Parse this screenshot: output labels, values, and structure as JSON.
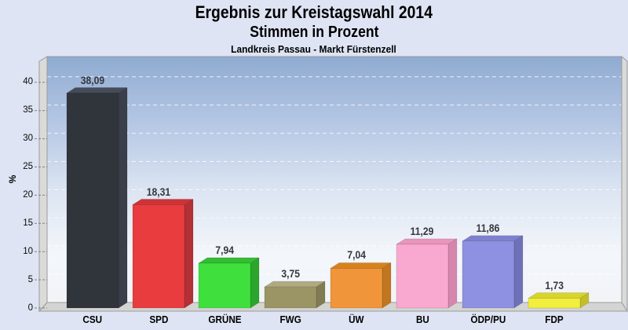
{
  "header": {
    "title": "Ergebnis zur Kreistagswahl 2014",
    "subtitle": "Stimmen in Prozent",
    "region": "Landkreis Passau - Markt Fürstenzell"
  },
  "colors": {
    "page_bg": "#dee4f3",
    "wall": "#dadad8",
    "floor": "#d4d4d2",
    "box_edge": "#9b9b9b",
    "gridline": "rgba(255,255,255,0.8)",
    "tick_mark": "#808080",
    "tick_label": "#0a0a0a",
    "value_label": "#34373c",
    "interior_gradient": [
      "#8fabd1",
      "#b2c5e3",
      "#dce5f2",
      "#f3f6fa",
      "#f2f4f8"
    ]
  },
  "chart_data": {
    "type": "bar",
    "title": "Ergebnis zur Kreistagswahl 2014",
    "subtitle": "Stimmen in Prozent",
    "region_label": "Landkreis Passau - Markt Fürstenzell",
    "xlabel": "",
    "ylabel": "%",
    "ylim": [
      0,
      40
    ],
    "yticks": [
      0,
      5,
      10,
      15,
      20,
      25,
      30,
      35,
      40
    ],
    "grid": "horizontal dashed, every 5",
    "legend": "none",
    "style": "3d-bars",
    "categories": [
      "CSU",
      "SPD",
      "GRÜNE",
      "FWG",
      "ÜW",
      "BU",
      "ÖDP/PU",
      "FDP"
    ],
    "values": [
      38.09,
      18.31,
      7.94,
      3.75,
      7.04,
      11.29,
      11.86,
      1.73
    ],
    "value_labels": [
      "38,09",
      "18,31",
      "7,94",
      "3,75",
      "7,04",
      "11,29",
      "11,86",
      "1,73"
    ],
    "bar_colors": [
      {
        "party": "CSU",
        "front": "#30343b",
        "top": "#454b58",
        "side": "#3a3f4a"
      },
      {
        "party": "SPD",
        "front": "#e83c3e",
        "top": "#cd3338",
        "side": "#b23036"
      },
      {
        "party": "GRÜNE",
        "front": "#3fe03d",
        "top": "#34bd33",
        "side": "#2ba52c"
      },
      {
        "party": "FWG",
        "front": "#9b9566",
        "top": "#b0aa7e",
        "side": "#807b54"
      },
      {
        "party": "ÜW",
        "front": "#f0953a",
        "top": "#d8821e",
        "side": "#c1761f"
      },
      {
        "party": "BU",
        "front": "#f9a8d0",
        "top": "#e995bc",
        "side": "#d686ad"
      },
      {
        "party": "ÖDP/PU",
        "front": "#8e90e1",
        "top": "#7e80ce",
        "side": "#6f71b8"
      },
      {
        "party": "FDP",
        "front": "#f1ee3d",
        "top": "#d8d42b",
        "side": "#c3bf28"
      }
    ]
  }
}
